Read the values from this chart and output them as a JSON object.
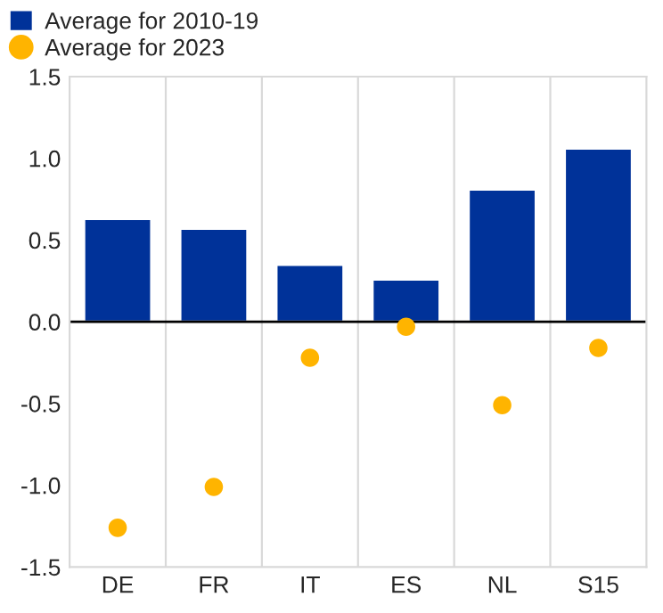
{
  "chart_data": {
    "type": "bar",
    "categories": [
      "DE",
      "FR",
      "IT",
      "ES",
      "NL",
      "S15"
    ],
    "series": [
      {
        "name": "Average for 2010-19",
        "color": "#003299",
        "values": [
          0.63,
          0.57,
          0.35,
          0.26,
          0.81,
          1.06
        ]
      },
      {
        "name": "Average for 2023",
        "type": "scatter",
        "color": "#ffb400",
        "values": [
          -1.26,
          -1.01,
          -0.22,
          -0.03,
          -0.51,
          -0.16
        ]
      }
    ],
    "ylim": [
      -1.5,
      1.5
    ],
    "yticks": [
      {
        "value": -1.5,
        "label": "-1.5"
      },
      {
        "value": -1.0,
        "label": "-1.0"
      },
      {
        "value": -0.5,
        "label": "-0.5"
      },
      {
        "value": 0,
        "label": "0.0"
      },
      {
        "value": 0.5,
        "label": "0.5"
      },
      {
        "value": 1.0,
        "label": "1.0"
      },
      {
        "value": 1.5,
        "label": "1.5"
      }
    ],
    "grid": "x",
    "legend": "top left",
    "marker": "circle",
    "ref_lines": [
      {
        "axis": "y",
        "value": 0,
        "color": "#000000"
      }
    ]
  }
}
